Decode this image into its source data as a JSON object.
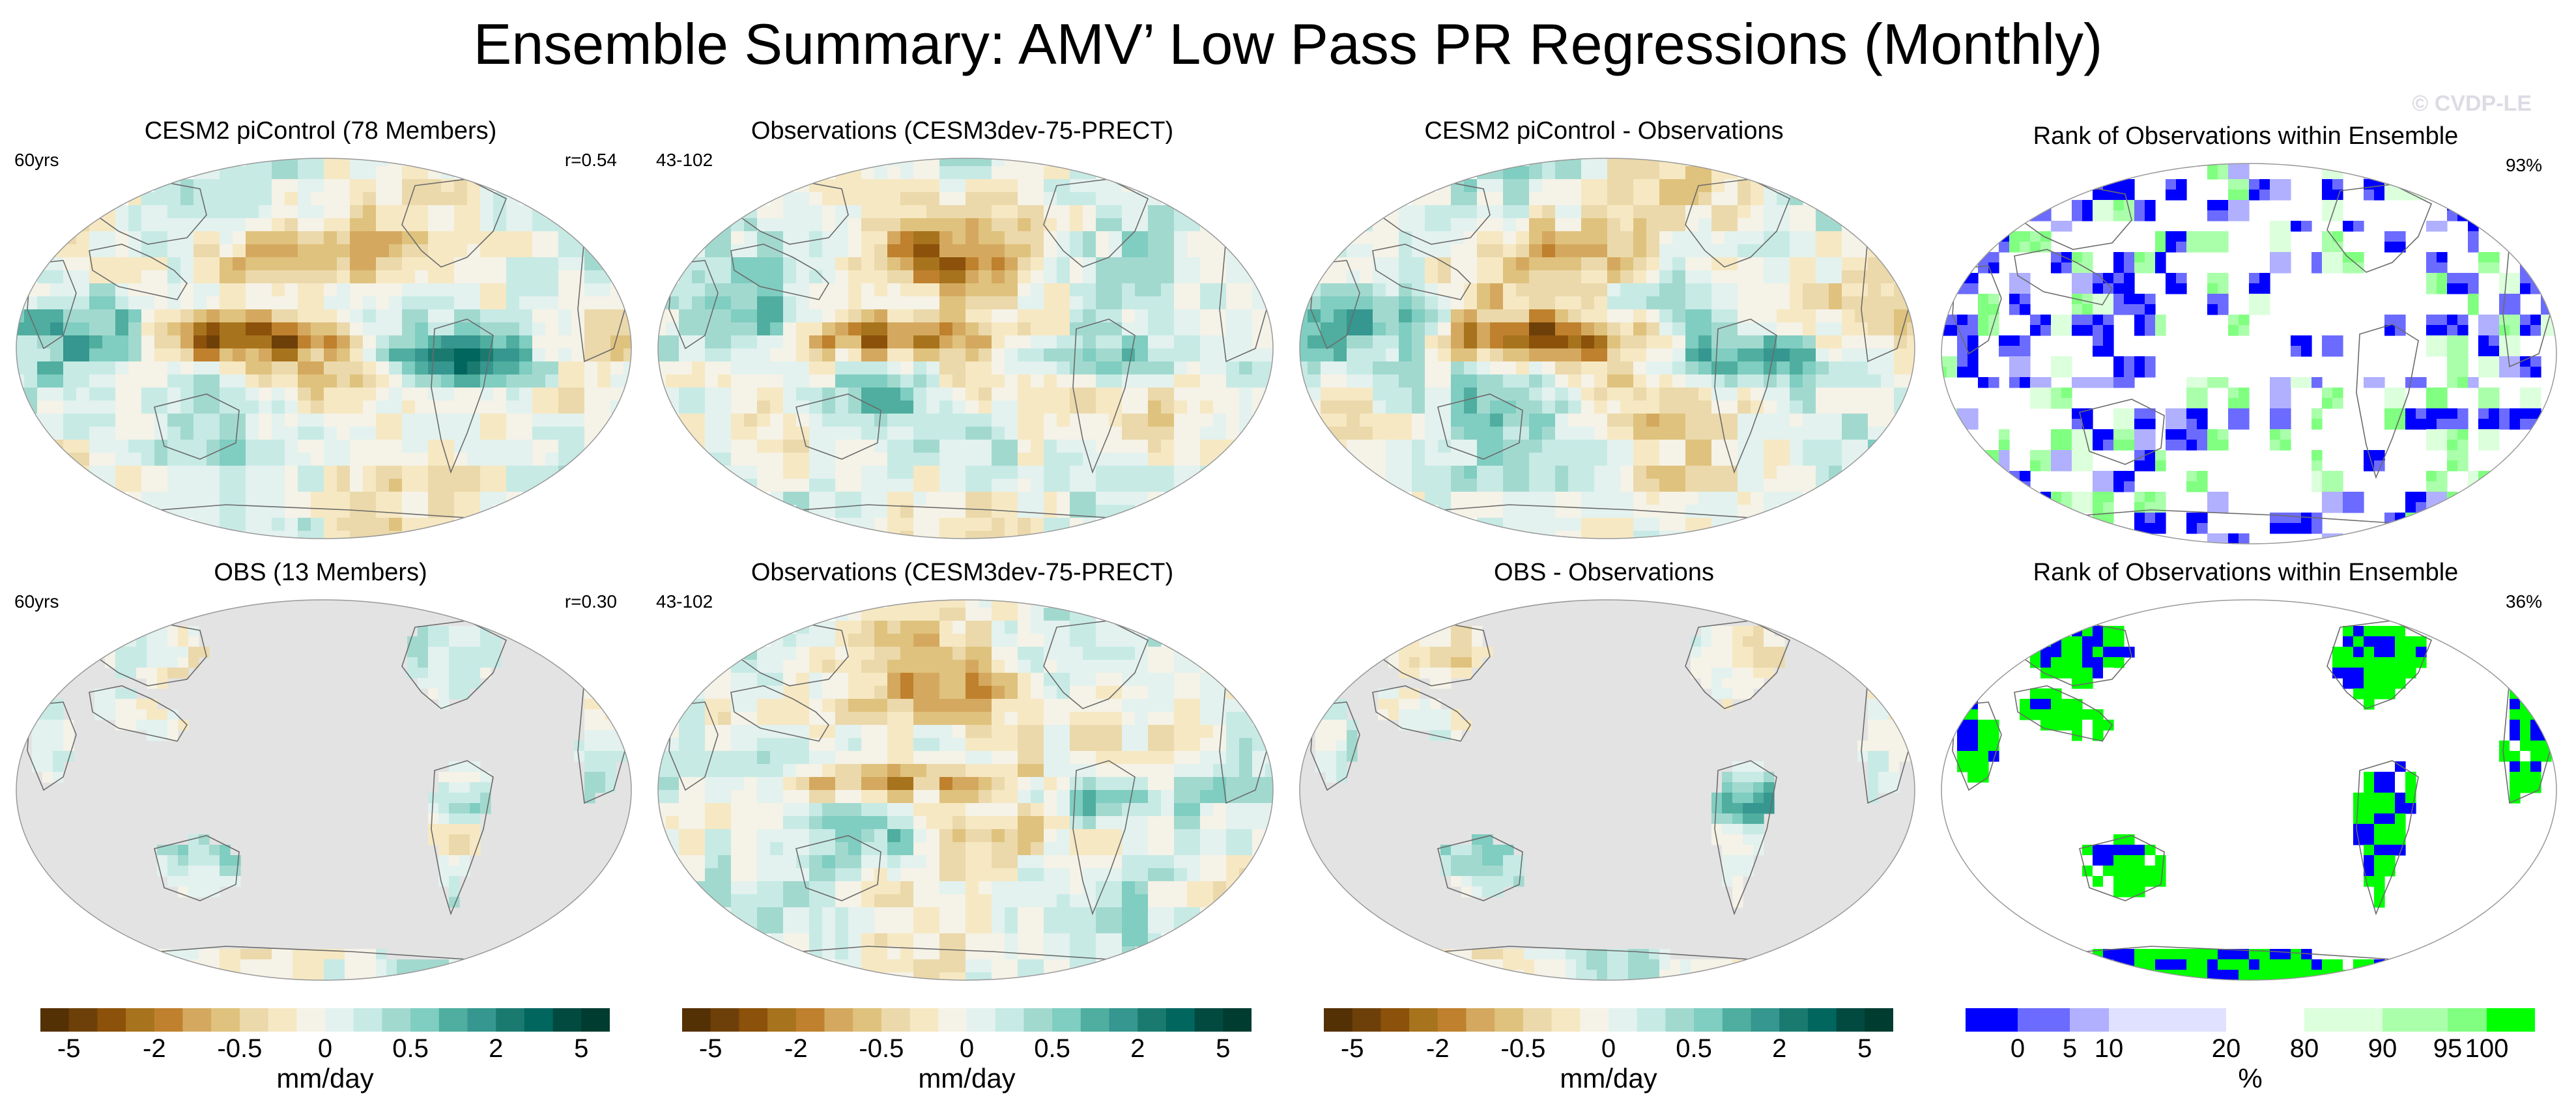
{
  "figure": {
    "title": "Ensemble Summary: AMV’ Low Pass PR Regressions (Monthly)",
    "watermark": "© CVDP-LE"
  },
  "panels": [
    {
      "title": "CESM2 piControl (78 Members)",
      "left_label": "60yrs",
      "right_label": "r=0.54",
      "map_style": "diverging-full"
    },
    {
      "title": "Observations (CESM3dev-75-PRECT)",
      "left_label": "43-102",
      "right_label": "",
      "map_style": "diverging-full"
    },
    {
      "title": "CESM2 piControl - Observations",
      "left_label": "",
      "right_label": "",
      "map_style": "diverging-full"
    },
    {
      "title": "Rank of Observations within Ensemble",
      "left_label": "",
      "right_label": "93%",
      "map_style": "rank-sparse"
    },
    {
      "title": "OBS (13 Members)",
      "left_label": "60yrs",
      "right_label": "r=0.30",
      "map_style": "diverging-land"
    },
    {
      "title": "Observations (CESM3dev-75-PRECT)",
      "left_label": "43-102",
      "right_label": "",
      "map_style": "diverging-full"
    },
    {
      "title": "OBS - Observations",
      "left_label": "",
      "right_label": "",
      "map_style": "diverging-land"
    },
    {
      "title": "Rank of Observations within Ensemble",
      "left_label": "",
      "right_label": "36%",
      "map_style": "rank-land"
    }
  ],
  "colorbars": [
    {
      "label": "mm/day",
      "ticks": [
        "-5",
        "-2",
        "-0.5",
        "0",
        "0.5",
        "2",
        "5"
      ]
    },
    {
      "label": "mm/day",
      "ticks": [
        "-5",
        "-2",
        "-0.5",
        "0",
        "0.5",
        "2",
        "5"
      ]
    },
    {
      "label": "mm/day",
      "ticks": [
        "-5",
        "-2",
        "-0.5",
        "0",
        "0.5",
        "2",
        "5"
      ]
    },
    {
      "label": "%",
      "ticks": [
        "0",
        "5",
        "10",
        "20",
        "80",
        "90",
        "95",
        "100"
      ]
    }
  ],
  "colors": {
    "diverging": [
      "#543005",
      "#6e4009",
      "#8c510a",
      "#a8731d",
      "#bf812d",
      "#d4a95f",
      "#dfc27d",
      "#ebd9ab",
      "#f6e8c3",
      "#f5f2e7",
      "#e3f2ef",
      "#c7eae5",
      "#a2d9cf",
      "#80cdc1",
      "#4fae9f",
      "#35978f",
      "#1a7a70",
      "#01665e",
      "#024a40",
      "#003c30"
    ],
    "rank": [
      "#0000ff",
      "#6b6bff",
      "#b0b0ff",
      "#e0e0ff",
      "#ffffff",
      "#dcffdc",
      "#aaffaa",
      "#80ff80",
      "#00ff00"
    ],
    "land_mask": "#e3e3e3"
  }
}
